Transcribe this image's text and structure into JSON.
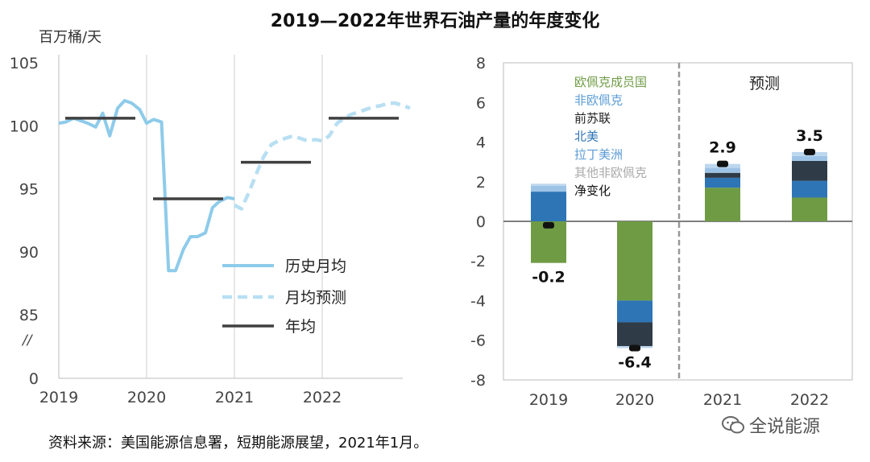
{
  "title": "2019—2022年世界石油产量的年度变化",
  "footer": "资料来源：美国能源信息署，短期能源展望，2021年1月。",
  "watermark": "全说能源",
  "colors": {
    "history": "#8ecbea",
    "forecast_line": "#b8dff2",
    "annual": "#404040",
    "opec": "#6f9b45",
    "non_opec": "#5b9bd5",
    "fsu": "#2f3b47",
    "north_america": "#2e75b6",
    "latin_america": "#9dc3e6",
    "other_non_opec": "#bdd7ee",
    "net": "#111111"
  },
  "chart_data": [
    {
      "type": "line",
      "ylabel": "百万桶/天",
      "ylim": [
        0,
        105
      ],
      "yticks": [
        0,
        85,
        90,
        95,
        100,
        105
      ],
      "axis_break_label": "//",
      "xticks": [
        "2019",
        "2020",
        "2021",
        "2022"
      ],
      "legend": {
        "placement": "bottom-right",
        "items": [
          "历史月均",
          "月均预测",
          "年均"
        ]
      },
      "series": [
        {
          "name": "历史月均",
          "x": [
            2019.0,
            2019.08,
            2019.17,
            2019.25,
            2019.33,
            2019.42,
            2019.5,
            2019.58,
            2019.67,
            2019.75,
            2019.83,
            2019.92,
            2020.0,
            2020.08,
            2020.17,
            2020.25,
            2020.33,
            2020.42,
            2020.5,
            2020.58,
            2020.67,
            2020.75,
            2020.83,
            2020.92,
            2021.0
          ],
          "y": [
            100.2,
            100.3,
            100.6,
            100.4,
            100.2,
            99.9,
            101.0,
            99.2,
            101.4,
            102.0,
            101.8,
            101.3,
            100.2,
            100.5,
            100.3,
            88.5,
            88.5,
            90.2,
            91.2,
            91.2,
            91.5,
            93.5,
            94.0,
            94.3,
            94.2
          ]
        },
        {
          "name": "月均预测",
          "x": [
            2021.0,
            2021.08,
            2021.17,
            2021.25,
            2021.33,
            2021.42,
            2021.5,
            2021.58,
            2021.67,
            2021.75,
            2021.83,
            2021.92,
            2022.0,
            2022.08,
            2022.17,
            2022.25,
            2022.33,
            2022.42,
            2022.5,
            2022.58,
            2022.67,
            2022.75,
            2022.83,
            2022.92,
            2023.0
          ],
          "y": [
            93.7,
            93.4,
            94.8,
            96.2,
            97.5,
            98.5,
            98.8,
            99.0,
            99.2,
            99.0,
            98.8,
            98.9,
            98.8,
            99.2,
            100.2,
            100.6,
            100.9,
            101.1,
            101.3,
            101.5,
            101.6,
            101.8,
            101.8,
            101.6,
            101.4
          ]
        },
        {
          "name": "年均",
          "segments": [
            {
              "year": 2019,
              "value": 100.6
            },
            {
              "year": 2020,
              "value": 94.2
            },
            {
              "year": 2021,
              "value": 97.1
            },
            {
              "year": 2022,
              "value": 100.6
            }
          ]
        }
      ]
    },
    {
      "type": "bar",
      "stacked": true,
      "ylim": [
        -8,
        8
      ],
      "yticks": [
        -8,
        -6,
        -4,
        -2,
        0,
        2,
        4,
        6,
        8
      ],
      "categories": [
        "2019",
        "2020",
        "2021",
        "2022"
      ],
      "forecast_label": "预测",
      "legend": {
        "placement": "top-left",
        "items": [
          "欧佩克成员国",
          "非欧佩克",
          "前苏联",
          "北美",
          "拉丁美洲",
          "其他非欧佩克",
          "净变化"
        ]
      },
      "series": [
        {
          "name": "欧佩克成员国",
          "values": [
            -2.1,
            -4.0,
            1.7,
            1.2
          ]
        },
        {
          "name": "北美",
          "values": [
            1.5,
            -1.1,
            0.5,
            0.85
          ]
        },
        {
          "name": "前苏联",
          "values": [
            0.0,
            -1.2,
            0.25,
            1.0
          ]
        },
        {
          "name": "拉丁美洲",
          "values": [
            0.3,
            0.0,
            0.25,
            0.25
          ]
        },
        {
          "name": "其他非欧佩克",
          "values": [
            0.1,
            -0.1,
            0.2,
            0.2
          ]
        }
      ],
      "net_change": [
        -0.2,
        -6.4,
        2.9,
        3.5
      ],
      "data_labels": [
        "-0.2",
        "-6.4",
        "2.9",
        "3.5"
      ]
    }
  ]
}
